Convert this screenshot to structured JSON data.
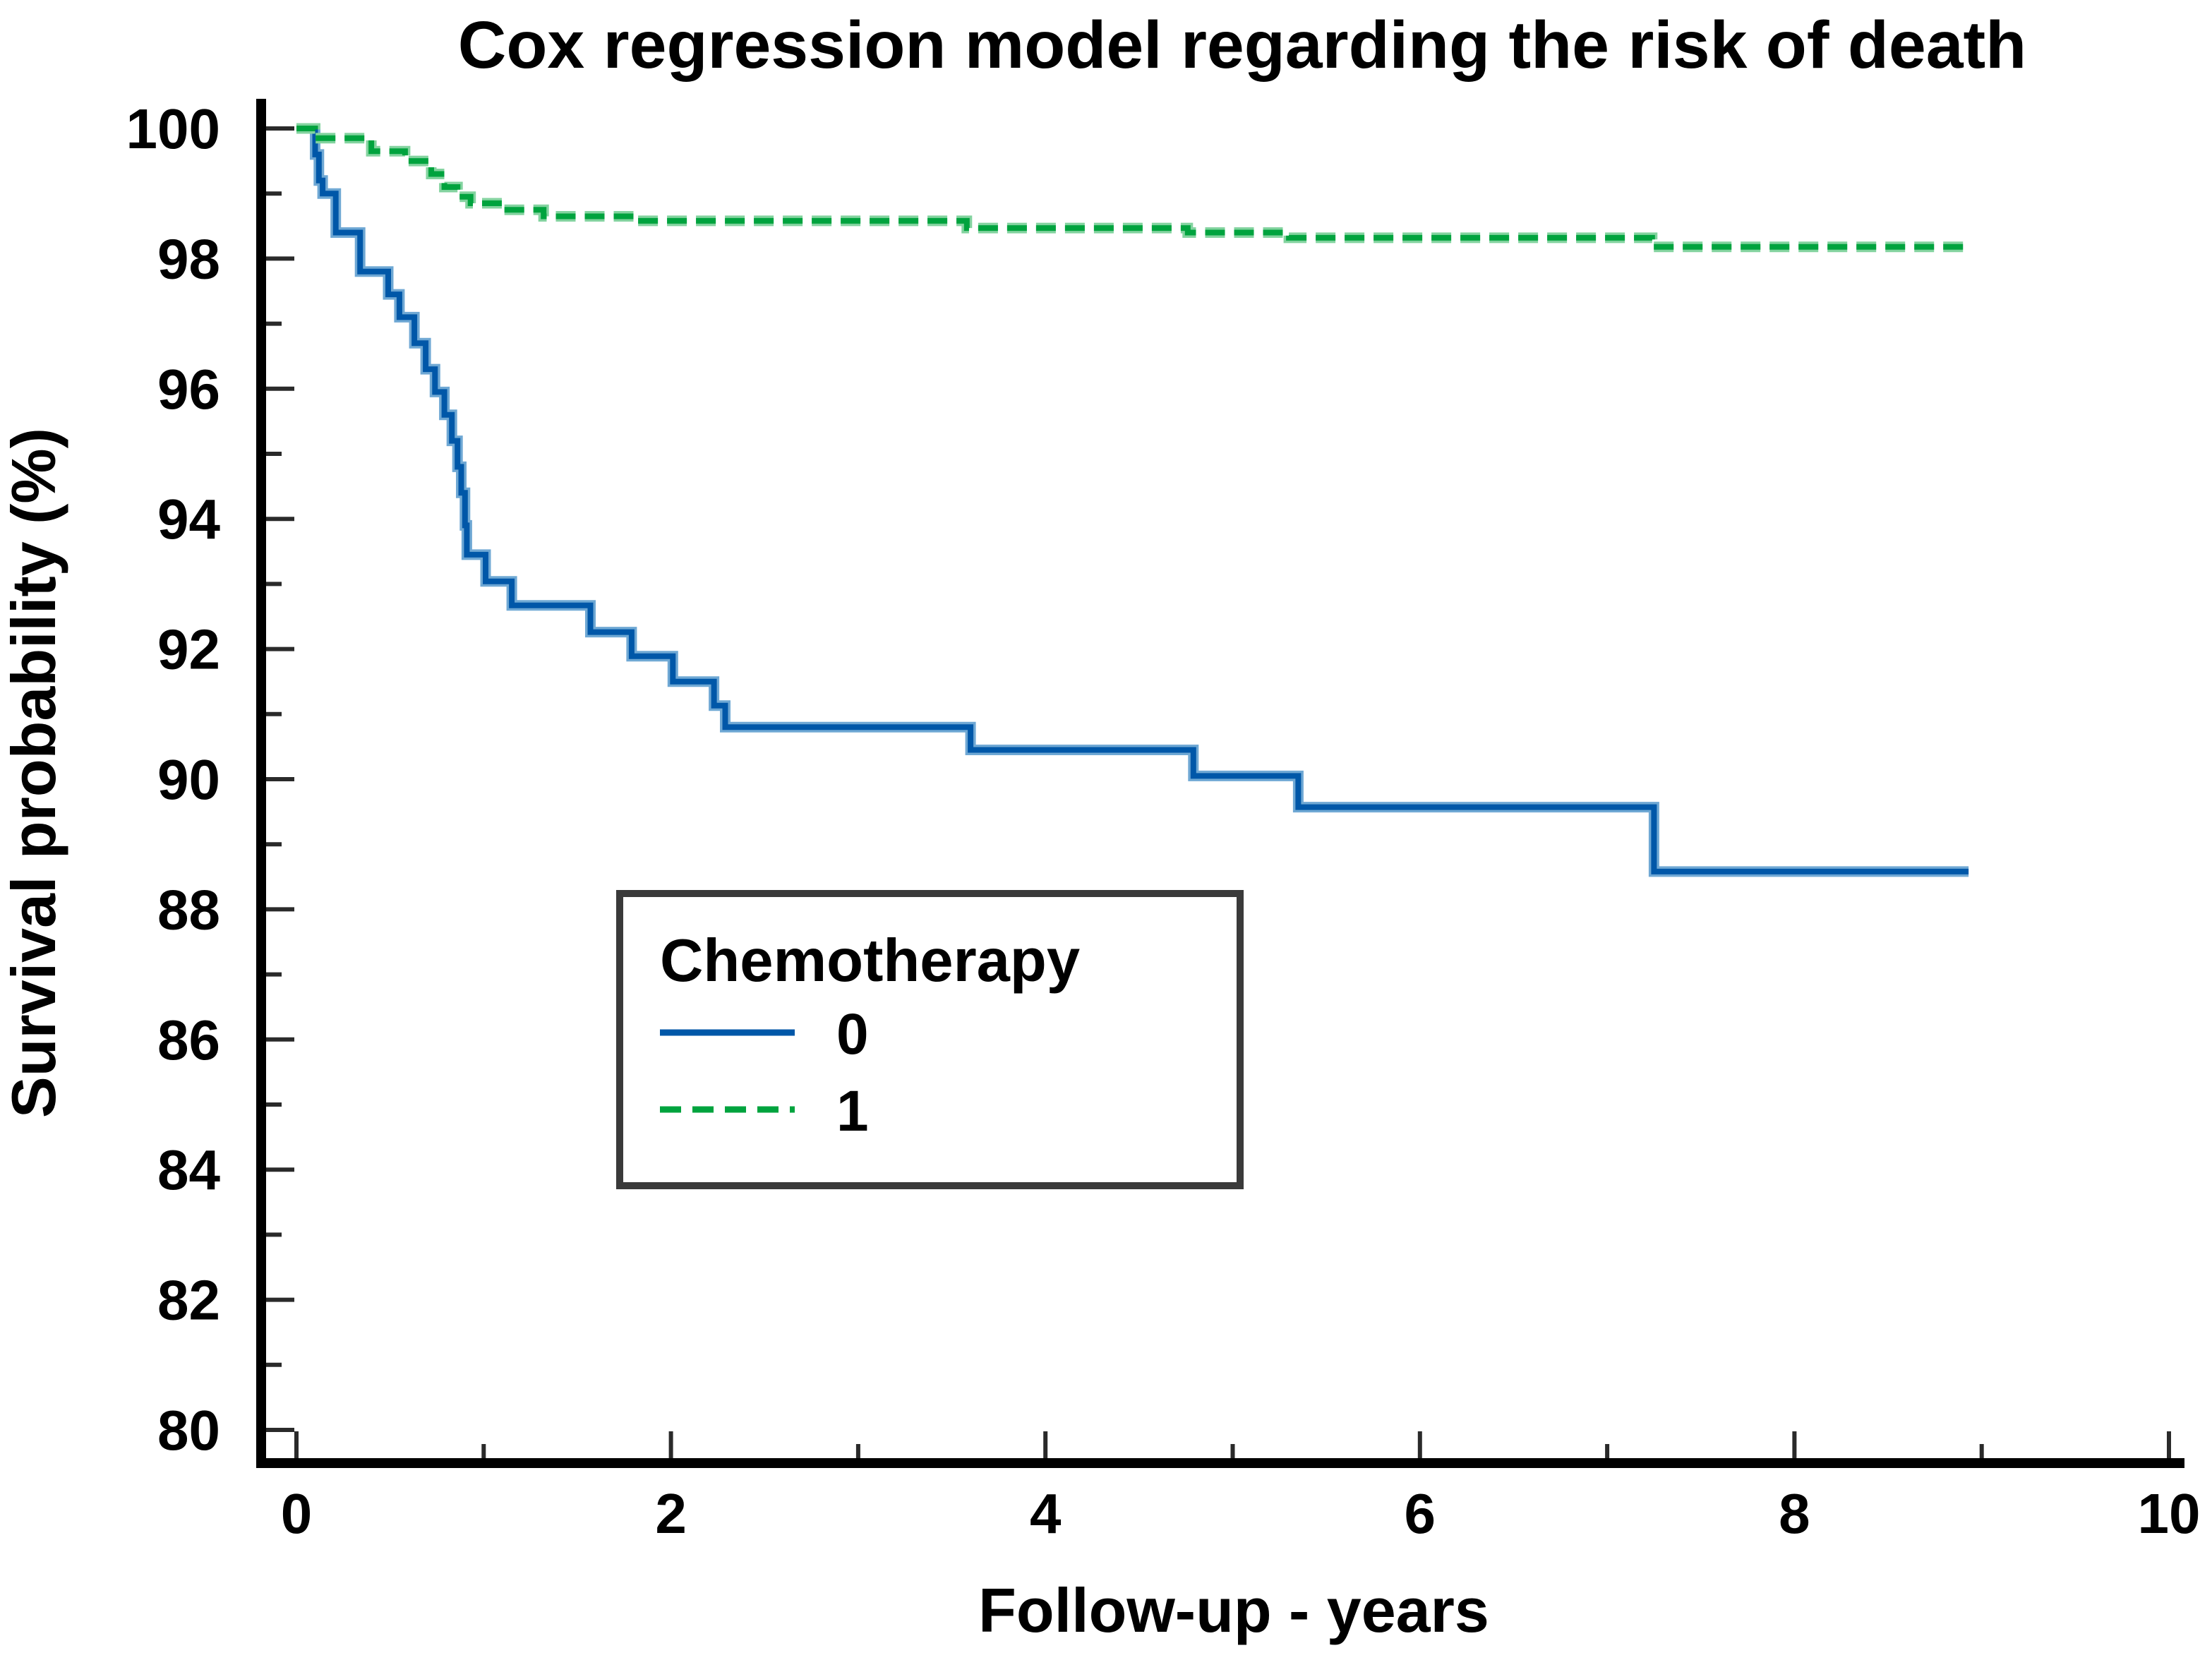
{
  "chart_data": {
    "type": "line",
    "subtype": "kaplan-meier-step",
    "title": "Cox regression model regarding the risk of death",
    "xlabel": "Follow-up - years",
    "ylabel": "Survival probability (%)",
    "xlim": [
      0,
      10
    ],
    "ylim": [
      80,
      100
    ],
    "grid": false,
    "axes": {
      "x": {
        "major_ticks": [
          0,
          2,
          4,
          6,
          8,
          10
        ],
        "minor_ticks": [
          1,
          3,
          5,
          7,
          9
        ],
        "tick_labels": [
          "0",
          "2",
          "4",
          "6",
          "8",
          "10"
        ]
      },
      "y": {
        "major_ticks": [
          100,
          98,
          96,
          94,
          92,
          90,
          88,
          86,
          84,
          82,
          80
        ],
        "minor_ticks": [
          99,
          97,
          95,
          93,
          91,
          89,
          87,
          85,
          83,
          81
        ],
        "tick_labels": [
          "100",
          "98",
          "96",
          "94",
          "92",
          "90",
          "88",
          "86",
          "84",
          "82",
          "80"
        ]
      }
    },
    "legend": {
      "title": "Chemotherapy",
      "position": "inside-center-left",
      "entries": [
        {
          "label": "0",
          "line_style": "solid",
          "color": "#0057A8"
        },
        {
          "label": "1",
          "line_style": "dashed",
          "color": "#00A33E"
        }
      ]
    },
    "series": [
      {
        "name": "0",
        "line_style": "solid",
        "color": "#0057A8",
        "halo_color": "#6FA8D4",
        "end_x": 8.93,
        "steps": [
          [
            0,
            100
          ],
          [
            0.1,
            99.6
          ],
          [
            0.12,
            99.2
          ],
          [
            0.14,
            99.0
          ],
          [
            0.21,
            98.4
          ],
          [
            0.34,
            97.8
          ],
          [
            0.49,
            97.45
          ],
          [
            0.55,
            97.1
          ],
          [
            0.63,
            96.7
          ],
          [
            0.69,
            96.3
          ],
          [
            0.74,
            95.95
          ],
          [
            0.79,
            95.6
          ],
          [
            0.83,
            95.2
          ],
          [
            0.86,
            94.8
          ],
          [
            0.88,
            94.4
          ],
          [
            0.9,
            93.9
          ],
          [
            0.91,
            93.45
          ],
          [
            1.01,
            93.04
          ],
          [
            1.15,
            92.67
          ],
          [
            1.57,
            92.26
          ],
          [
            1.79,
            91.89
          ],
          [
            2.01,
            91.5
          ],
          [
            2.23,
            91.13
          ],
          [
            2.29,
            90.8
          ],
          [
            3.6,
            90.45
          ],
          [
            4.79,
            90.05
          ],
          [
            5.35,
            89.57
          ],
          [
            7.25,
            88.58
          ]
        ]
      },
      {
        "name": "1",
        "line_style": "dashed",
        "color": "#00A33E",
        "halo_color": "#83D39F",
        "end_x": 8.9,
        "steps": [
          [
            0,
            100
          ],
          [
            0.1,
            99.85
          ],
          [
            0.4,
            99.65
          ],
          [
            0.58,
            99.5
          ],
          [
            0.72,
            99.3
          ],
          [
            0.79,
            99.1
          ],
          [
            0.86,
            98.95
          ],
          [
            0.93,
            98.85
          ],
          [
            1.1,
            98.75
          ],
          [
            1.32,
            98.65
          ],
          [
            1.8,
            98.58
          ],
          [
            3.58,
            98.47
          ],
          [
            4.76,
            98.4
          ],
          [
            5.3,
            98.32
          ],
          [
            7.24,
            98.18
          ]
        ]
      }
    ]
  }
}
